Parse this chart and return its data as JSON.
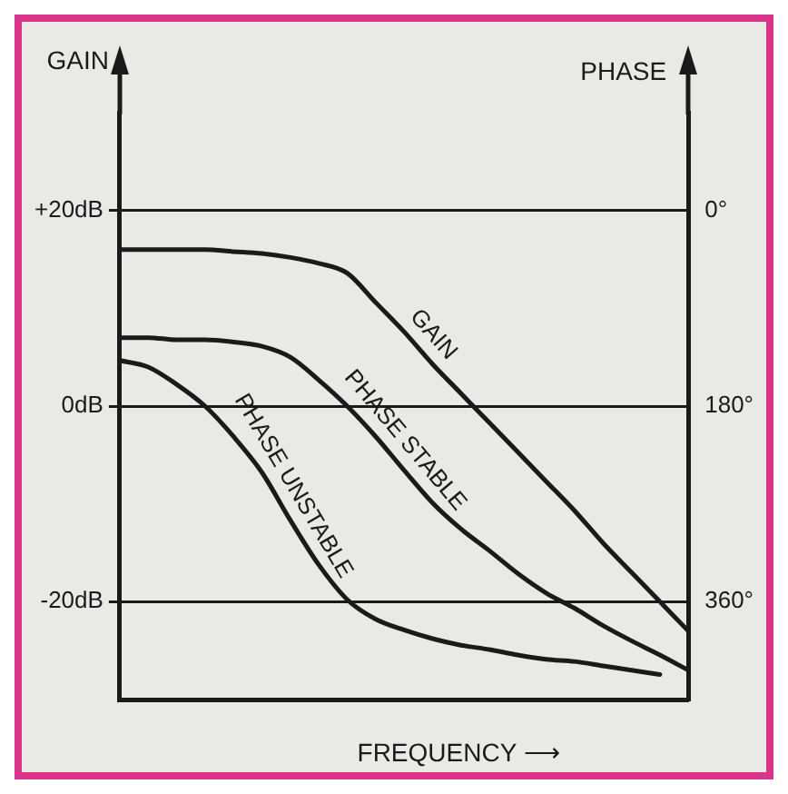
{
  "chart_data": {
    "type": "line",
    "ylabel": "GAIN",
    "y2label": "PHASE",
    "xlabel": "FREQUENCY ⟶",
    "categories": [
      null,
      null,
      null,
      null,
      null,
      null,
      null,
      null,
      null,
      null,
      null,
      null,
      null,
      null,
      null,
      null,
      null,
      null,
      null,
      null,
      null
    ],
    "series": [
      {
        "name": "GAIN",
        "color": "#1a1a1a",
        "values": [
          16,
          16,
          16,
          16,
          15.8,
          15.6,
          15.2,
          14.6,
          13.6,
          10.6,
          7.6,
          4.3,
          1.3,
          -1.7,
          -4.7,
          -7.7,
          -10.7,
          -14,
          -17,
          -20,
          -23
        ]
      },
      {
        "name": "PHASE STABLE",
        "color": "#1a1a1a",
        "axis": "y2",
        "values": [
          117,
          117,
          119,
          119,
          121,
          125,
          135,
          156,
          180,
          208,
          239,
          269,
          293,
          313,
          334,
          352,
          366,
          382,
          396,
          409,
          423
        ]
      },
      {
        "name": "PHASE UNSTABLE",
        "color": "#1a1a1a",
        "axis": "y2",
        "values": [
          138,
          144,
          160,
          180,
          208,
          241,
          285,
          326,
          358,
          376,
          386,
          394,
          400,
          404,
          409,
          413,
          415,
          419,
          423,
          427,
          null
        ]
      }
    ],
    "ylim": [
      -30,
      30
    ],
    "yticks": [
      {
        "value": -20,
        "label": "-20dB"
      },
      {
        "value": 0,
        "label": "0dB"
      },
      {
        "value": 20,
        "label": "+20dB"
      }
    ],
    "y2lim": [
      450,
      -90
    ],
    "y2ticks": [
      {
        "value": 0,
        "label": "0°"
      },
      {
        "value": 180,
        "label": "180°"
      },
      {
        "value": 360,
        "label": "360°"
      }
    ],
    "grid": "y",
    "legend": false,
    "marker": "none",
    "line_style": "solid",
    "tick_labels": "y"
  }
}
